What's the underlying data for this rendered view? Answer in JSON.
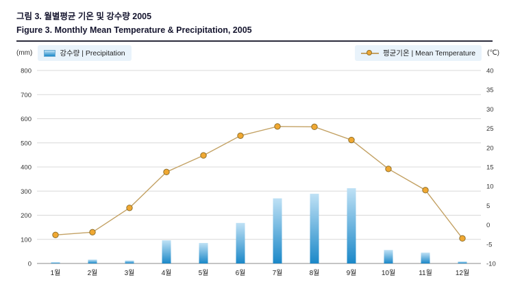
{
  "header": {
    "title_ko": "그림 3. 월별평균 기온 및 강수량 2005",
    "title_en": "Figure 3. Monthly Mean Temperature & Precipitation, 2005"
  },
  "legend": {
    "precipitation": "강수량 | Precipitation",
    "temperature": "평균기온 | Mean Temperature"
  },
  "chart_data": {
    "type": "bar+line",
    "title": "Figure 3. Monthly Mean Temperature & Precipitation, 2005",
    "categories": [
      "1월",
      "2월",
      "3월",
      "4월",
      "5월",
      "6월",
      "7월",
      "8월",
      "9월",
      "10월",
      "11월",
      "12월"
    ],
    "series": [
      {
        "name": "강수량 | Precipitation",
        "type": "bar",
        "axis": "left",
        "unit": "mm",
        "values": [
          5,
          16,
          12,
          96,
          85,
          168,
          270,
          289,
          312,
          56,
          45,
          8
        ]
      },
      {
        "name": "평균기온 | Mean Temperature",
        "type": "line",
        "axis": "right",
        "unit": "℃",
        "values": [
          -2.6,
          -1.9,
          4.4,
          13.7,
          18.0,
          23.1,
          25.5,
          25.4,
          22.0,
          14.5,
          9.0,
          -3.5
        ]
      }
    ],
    "left_axis": {
      "unit": "(mm)",
      "min": 0,
      "max": 800,
      "step": 100
    },
    "right_axis": {
      "unit": "(℃)",
      "min": -10,
      "max": 40,
      "step": 5
    },
    "grid": true,
    "legend_position": "top"
  },
  "colors": {
    "bar_top": "#bfe1f5",
    "bar_bottom": "#1b88c8",
    "line": "#c3a163",
    "marker_fill": "#f0a832",
    "marker_stroke": "#8d6f2c",
    "grid": "#d8d8d8",
    "axis": "#8a8a8a",
    "title": "#15152e",
    "pill_bg": "#e9f3fb"
  }
}
